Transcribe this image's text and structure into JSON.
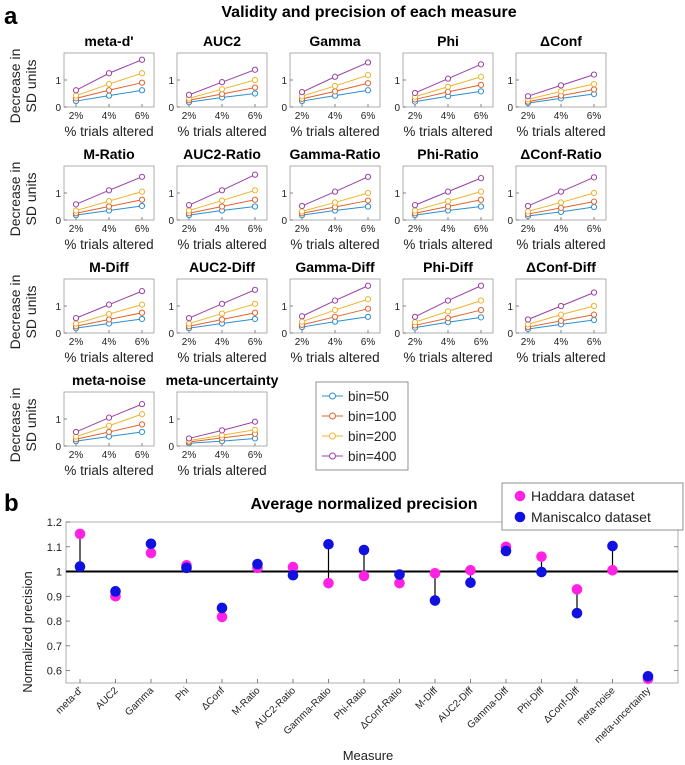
{
  "panel_a": {
    "label": "a",
    "title": "Validity and precision of each measure",
    "ylabel_line1": "Decrease in",
    "ylabel_line2": "SD units",
    "xlabel": "% trials altered"
  },
  "panel_b": {
    "label": "b"
  },
  "colors": {
    "bin50": "#2b8fd0",
    "bin100": "#e0632e",
    "bin200": "#efb42e",
    "bin400": "#9b3fa6",
    "haddara": "#ff22e4",
    "maniscalco": "#1010e0"
  },
  "chart_data": [
    {
      "type": "line",
      "panel": "a",
      "x": [
        "2%",
        "4%",
        "6%"
      ],
      "yticks": [
        "0",
        "1"
      ],
      "ylim": [
        0,
        2
      ],
      "legend": {
        "placement": "right of bottom row",
        "entries": [
          "bin=50",
          "bin=100",
          "bin=200",
          "bin=400"
        ]
      },
      "subplots": [
        {
          "title": "meta-d'",
          "series": [
            [
              0.22,
              0.42,
              0.62
            ],
            [
              0.32,
              0.62,
              0.9
            ],
            [
              0.42,
              0.85,
              1.25
            ],
            [
              0.62,
              1.25,
              1.75
            ]
          ]
        },
        {
          "title": "AUC2",
          "series": [
            [
              0.18,
              0.35,
              0.5
            ],
            [
              0.25,
              0.48,
              0.72
            ],
            [
              0.32,
              0.66,
              1.0
            ],
            [
              0.45,
              0.92,
              1.38
            ]
          ]
        },
        {
          "title": "Gamma",
          "series": [
            [
              0.22,
              0.42,
              0.62
            ],
            [
              0.3,
              0.58,
              0.88
            ],
            [
              0.4,
              0.78,
              1.18
            ],
            [
              0.55,
              1.12,
              1.65
            ]
          ]
        },
        {
          "title": "Phi",
          "series": [
            [
              0.2,
              0.4,
              0.58
            ],
            [
              0.28,
              0.56,
              0.82
            ],
            [
              0.38,
              0.75,
              1.12
            ],
            [
              0.52,
              1.05,
              1.58
            ]
          ]
        },
        {
          "title": "ΔConf",
          "series": [
            [
              0.15,
              0.32,
              0.48
            ],
            [
              0.2,
              0.42,
              0.65
            ],
            [
              0.28,
              0.58,
              0.85
            ],
            [
              0.4,
              0.8,
              1.2
            ]
          ]
        },
        {
          "title": "M-Ratio",
          "series": [
            [
              0.18,
              0.35,
              0.52
            ],
            [
              0.25,
              0.5,
              0.75
            ],
            [
              0.35,
              0.7,
              1.05
            ],
            [
              0.58,
              1.1,
              1.6
            ]
          ]
        },
        {
          "title": "AUC2-Ratio",
          "series": [
            [
              0.18,
              0.35,
              0.5
            ],
            [
              0.25,
              0.5,
              0.75
            ],
            [
              0.35,
              0.72,
              1.1
            ],
            [
              0.55,
              1.1,
              1.68
            ]
          ]
        },
        {
          "title": "Gamma-Ratio",
          "series": [
            [
              0.18,
              0.35,
              0.5
            ],
            [
              0.25,
              0.48,
              0.72
            ],
            [
              0.32,
              0.65,
              1.0
            ],
            [
              0.52,
              1.05,
              1.6
            ]
          ]
        },
        {
          "title": "Phi-Ratio",
          "series": [
            [
              0.18,
              0.35,
              0.5
            ],
            [
              0.25,
              0.5,
              0.75
            ],
            [
              0.35,
              0.7,
              1.05
            ],
            [
              0.55,
              1.05,
              1.55
            ]
          ]
        },
        {
          "title": "ΔConf-Ratio",
          "series": [
            [
              0.15,
              0.3,
              0.48
            ],
            [
              0.22,
              0.45,
              0.68
            ],
            [
              0.32,
              0.65,
              1.0
            ],
            [
              0.52,
              1.05,
              1.58
            ]
          ]
        },
        {
          "title": "M-Diff",
          "series": [
            [
              0.18,
              0.35,
              0.52
            ],
            [
              0.25,
              0.5,
              0.75
            ],
            [
              0.35,
              0.7,
              1.05
            ],
            [
              0.55,
              1.05,
              1.55
            ]
          ]
        },
        {
          "title": "AUC2-Diff",
          "series": [
            [
              0.18,
              0.35,
              0.52
            ],
            [
              0.25,
              0.5,
              0.75
            ],
            [
              0.35,
              0.72,
              1.08
            ],
            [
              0.55,
              1.08,
              1.6
            ]
          ]
        },
        {
          "title": "Gamma-Diff",
          "series": [
            [
              0.22,
              0.42,
              0.6
            ],
            [
              0.3,
              0.6,
              0.9
            ],
            [
              0.42,
              0.85,
              1.25
            ],
            [
              0.62,
              1.2,
              1.75
            ]
          ]
        },
        {
          "title": "Phi-Diff",
          "series": [
            [
              0.2,
              0.4,
              0.58
            ],
            [
              0.28,
              0.55,
              0.85
            ],
            [
              0.4,
              0.8,
              1.2
            ],
            [
              0.6,
              1.2,
              1.75
            ]
          ]
        },
        {
          "title": "ΔConf-Diff",
          "series": [
            [
              0.15,
              0.32,
              0.48
            ],
            [
              0.22,
              0.45,
              0.68
            ],
            [
              0.32,
              0.68,
              1.0
            ],
            [
              0.5,
              1.0,
              1.5
            ]
          ]
        },
        {
          "title": "meta-noise",
          "series": [
            [
              0.18,
              0.35,
              0.52
            ],
            [
              0.25,
              0.52,
              0.8
            ],
            [
              0.35,
              0.75,
              1.18
            ],
            [
              0.52,
              1.05,
              1.55
            ]
          ]
        },
        {
          "title": "meta-uncertainty",
          "series": [
            [
              0.1,
              0.18,
              0.28
            ],
            [
              0.15,
              0.3,
              0.45
            ],
            [
              0.2,
              0.4,
              0.6
            ],
            [
              0.28,
              0.58,
              0.9
            ]
          ]
        }
      ]
    },
    {
      "type": "scatter",
      "panel": "b",
      "title": "Average normalized precision",
      "xlabel": "Measure",
      "ylabel": "Normalized precision",
      "ylim": [
        0.55,
        1.2
      ],
      "yticks": [
        "0.6",
        "0.7",
        "0.8",
        "0.9",
        "1",
        "1.1",
        "1.2"
      ],
      "reference_line": 1,
      "legend_placement": "top-right",
      "categories": [
        "meta-d'",
        "AUC2",
        "Gamma",
        "Phi",
        "ΔConf",
        "M-Ratio",
        "AUC2-Ratio",
        "Gamma-Ratio",
        "Phi-Ratio",
        "ΔConf-Ratio",
        "M-Diff",
        "AUC2-Diff",
        "Gamma-Diff",
        "Phi-Diff",
        "ΔConf-Diff",
        "meta-noise",
        "meta-uncertainty"
      ],
      "series": [
        {
          "name": "Haddara dataset",
          "values": [
            1.152,
            0.9,
            1.075,
            1.025,
            0.817,
            1.015,
            1.018,
            0.953,
            0.982,
            0.953,
            0.993,
            1.005,
            1.1,
            1.06,
            0.928,
            1.005,
            0.567
          ]
        },
        {
          "name": "Maniscalco dataset",
          "values": [
            1.02,
            0.92,
            1.112,
            1.015,
            0.853,
            1.03,
            0.985,
            1.11,
            1.087,
            0.988,
            0.883,
            0.955,
            1.083,
            0.998,
            0.832,
            1.103,
            0.577
          ]
        }
      ]
    }
  ]
}
